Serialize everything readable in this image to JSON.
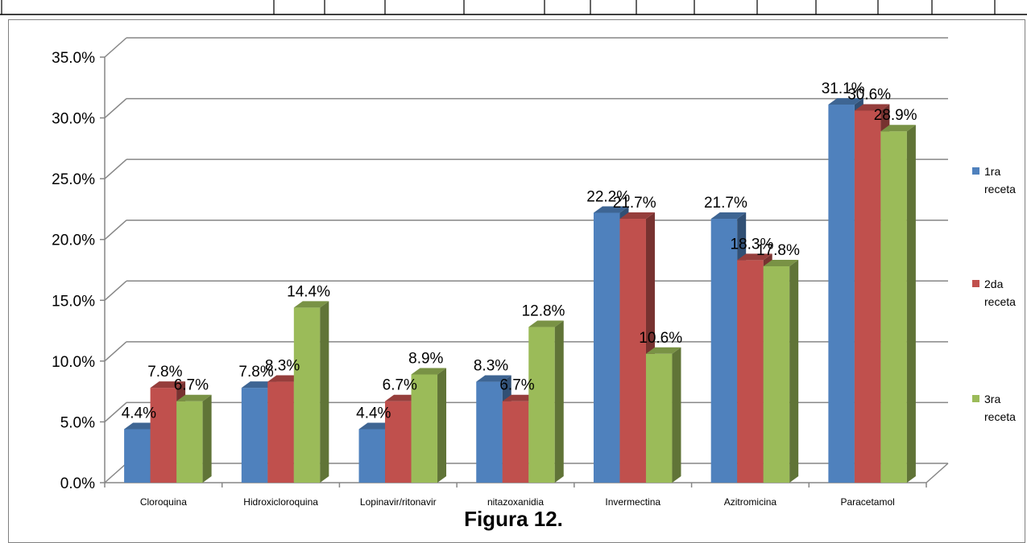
{
  "caption": "Figura 12.",
  "chart_data": {
    "type": "bar",
    "title": "",
    "xlabel": "",
    "ylabel": "",
    "ylim": [
      0,
      35
    ],
    "yticks": [
      "0.0%",
      "5.0%",
      "10.0%",
      "15.0%",
      "20.0%",
      "25.0%",
      "30.0%",
      "35.0%"
    ],
    "grid": true,
    "legend_position": "right",
    "categories": [
      "Cloroquina",
      "Hidroxicloroquina",
      "Lopinavir/ritonavir",
      "nitazoxanidia",
      "Invermectina",
      "Azitromicina",
      "Paracetamol"
    ],
    "series": [
      {
        "name": "1ra receta",
        "legend_lines": [
          "1ra",
          "receta"
        ],
        "color": "#4F81BD",
        "values": [
          4.4,
          7.8,
          4.4,
          8.3,
          22.2,
          21.7,
          31.1
        ],
        "labels": [
          "4.4%",
          "7.8%",
          "4.4%",
          "8.3%",
          "22.2%",
          "21.7%",
          "31.1%"
        ]
      },
      {
        "name": "2da receta",
        "legend_lines": [
          "2da",
          "receta"
        ],
        "color": "#C0504D",
        "values": [
          7.8,
          8.3,
          6.7,
          6.7,
          21.7,
          18.3,
          30.6
        ],
        "labels": [
          "7.8%",
          "8.3%",
          "6.7%",
          "6.7%",
          "21.7%",
          "18.3%",
          "30.6%"
        ]
      },
      {
        "name": "3ra receta",
        "legend_lines": [
          "3ra",
          "receta"
        ],
        "color": "#9BBB59",
        "values": [
          6.7,
          14.4,
          8.9,
          12.8,
          10.6,
          17.8,
          28.9
        ],
        "labels": [
          "6.7%",
          "14.4%",
          "8.9%",
          "12.8%",
          "10.6%",
          "17.8%",
          "28.9%"
        ]
      }
    ]
  }
}
